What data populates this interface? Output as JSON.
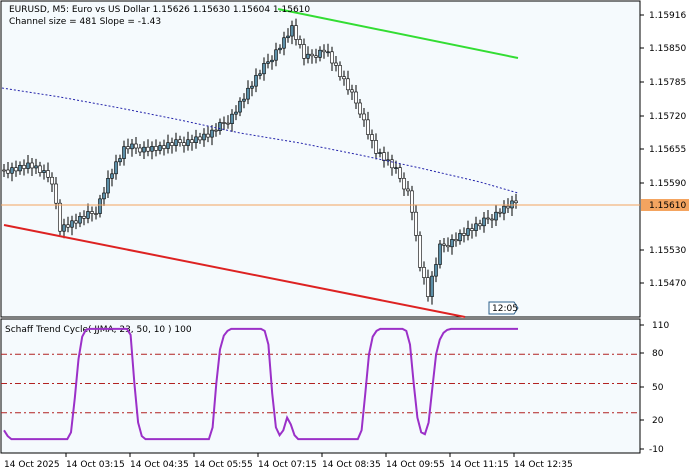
{
  "header": {
    "symbol_line": "EURUSD, M5:  Euro vs US Dollar  1.15626 1.15630 1.15604 1.15610",
    "channel_line": "Channel size = 481 Slope = -1.43"
  },
  "indicator": {
    "title": "Schaff Trend Cycle( JJMA, 23, 50, 10 ) 100"
  },
  "price_axis": {
    "ticks": [
      "1.15916",
      "1.15850",
      "1.15785",
      "1.15720",
      "1.15655",
      "1.15590",
      "1.15530",
      "1.15470"
    ],
    "current_price": "1.15610",
    "current_price_color": "#f4a460"
  },
  "indicator_axis": {
    "ticks": [
      "110",
      "80",
      "50",
      "20",
      "-10"
    ],
    "levels": [
      80,
      50,
      20
    ]
  },
  "time_axis": {
    "labels": [
      "14 Oct 2025",
      "14 Oct 03:15",
      "14 Oct 04:35",
      "14 Oct 05:55",
      "14 Oct 07:15",
      "14 Oct 08:35",
      "14 Oct 09:55",
      "14 Oct 11:15",
      "14 Oct 12:35"
    ]
  },
  "countdown": "12:05",
  "colors": {
    "background": "#f5fafd",
    "bull_candle": "#5b8fa8",
    "upper_channel": "#33dd33",
    "lower_channel": "#dd2222",
    "midline": "#2222aa",
    "stc_line": "#9b30c8",
    "level_line": "#b22222"
  },
  "chart_data": {
    "type": "line",
    "series": [
      {
        "name": "Schaff Trend Cycle( JJMA, 23, 50, 10 )",
        "y": [
          2,
          -4,
          -7,
          -7,
          -7,
          -7,
          -7,
          -7,
          -7,
          -7,
          -7,
          -7,
          -7,
          -7,
          -7,
          -7,
          -7,
          -7,
          0,
          35,
          75,
          98,
          105,
          106,
          106,
          106,
          106,
          106,
          106,
          106,
          106,
          106,
          106,
          106,
          100,
          50,
          10,
          -4,
          -7,
          -7,
          -7,
          -7,
          -7,
          -7,
          -7,
          -7,
          -7,
          -7,
          -7,
          -7,
          -7,
          -7,
          -7,
          -7,
          -7,
          -7,
          5,
          50,
          85,
          99,
          104,
          106,
          106,
          106,
          106,
          106,
          106,
          106,
          106,
          106,
          104,
          90,
          40,
          5,
          -3,
          2,
          15,
          8,
          -3,
          -7,
          -7,
          -7,
          -7,
          -7,
          -7,
          -7,
          -7,
          -7,
          -7,
          -7,
          -7,
          -7,
          -7,
          -7,
          -7,
          -7,
          2,
          40,
          80,
          98,
          104,
          106,
          106,
          106,
          106,
          106,
          106,
          106,
          104,
          90,
          50,
          15,
          0,
          -2,
          10,
          45,
          80,
          95,
          102,
          105,
          106,
          106,
          106,
          106,
          106,
          106,
          106,
          106,
          106,
          106,
          106,
          106,
          106,
          106,
          106,
          106,
          106,
          106,
          106
        ]
      }
    ],
    "ylim": [
      -20,
      115
    ]
  }
}
